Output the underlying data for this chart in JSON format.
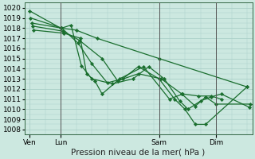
{
  "background_color": "#cce8e0",
  "grid_color": "#aacfc8",
  "line_color": "#1a6e2e",
  "marker_color": "#1a6e2e",
  "xlabel": "Pression niveau de la mer( hPa )",
  "ylim": [
    1007.5,
    1020.5
  ],
  "yticks": [
    1008,
    1009,
    1010,
    1011,
    1012,
    1013,
    1014,
    1015,
    1016,
    1017,
    1018,
    1019,
    1020
  ],
  "xtick_labels": [
    "Ven",
    "Lun",
    "Sam",
    "Dim"
  ],
  "xtick_positions": [
    0.5,
    3.5,
    13.0,
    18.5
  ],
  "xlim": [
    0.0,
    22.0
  ],
  "vlines": [
    3.5,
    13.0,
    18.5
  ],
  "vline_color": "#555555",
  "series": [
    [
      0.5,
      1019.7,
      3.5,
      1018.0,
      5.0,
      1017.8,
      7.0,
      1017.0,
      13.0,
      1015.0,
      21.5,
      1012.2
    ],
    [
      0.6,
      1019.0,
      3.6,
      1018.0,
      5.2,
      1016.5,
      6.5,
      1014.5,
      8.0,
      1012.6,
      9.5,
      1013.0,
      11.0,
      1014.2,
      13.0,
      1013.0,
      14.5,
      1011.0,
      15.5,
      1010.0,
      16.5,
      1008.5,
      17.5,
      1008.5,
      21.5,
      1012.2
    ],
    [
      0.7,
      1018.5,
      3.6,
      1018.0,
      4.5,
      1018.3,
      5.5,
      1014.3,
      6.5,
      1013.0,
      8.5,
      1012.5,
      10.5,
      1013.0,
      12.0,
      1014.2,
      13.5,
      1013.0,
      15.0,
      1010.8,
      15.8,
      1010.0,
      17.0,
      1010.8,
      18.0,
      1011.2,
      19.0,
      1011.5,
      21.7,
      1010.2
    ],
    [
      0.8,
      1018.2,
      3.7,
      1017.7,
      5.3,
      1016.8,
      7.5,
      1015.0,
      9.0,
      1012.8,
      11.0,
      1013.5,
      13.2,
      1013.0,
      15.2,
      1011.5,
      16.5,
      1010.3,
      17.5,
      1011.2,
      18.5,
      1010.5,
      21.8,
      1010.5
    ],
    [
      0.9,
      1017.8,
      3.8,
      1017.5,
      5.4,
      1017.0,
      6.0,
      1013.5,
      6.8,
      1012.8,
      7.5,
      1011.5,
      9.2,
      1013.0,
      11.5,
      1014.2,
      14.0,
      1011.0,
      15.3,
      1011.5,
      16.8,
      1011.3,
      18.0,
      1011.3,
      19.0,
      1011.0
    ]
  ],
  "marker": "D",
  "markersize": 2.2,
  "linewidth": 0.9,
  "tick_fontsize": 6.5,
  "label_fontsize": 7.5
}
